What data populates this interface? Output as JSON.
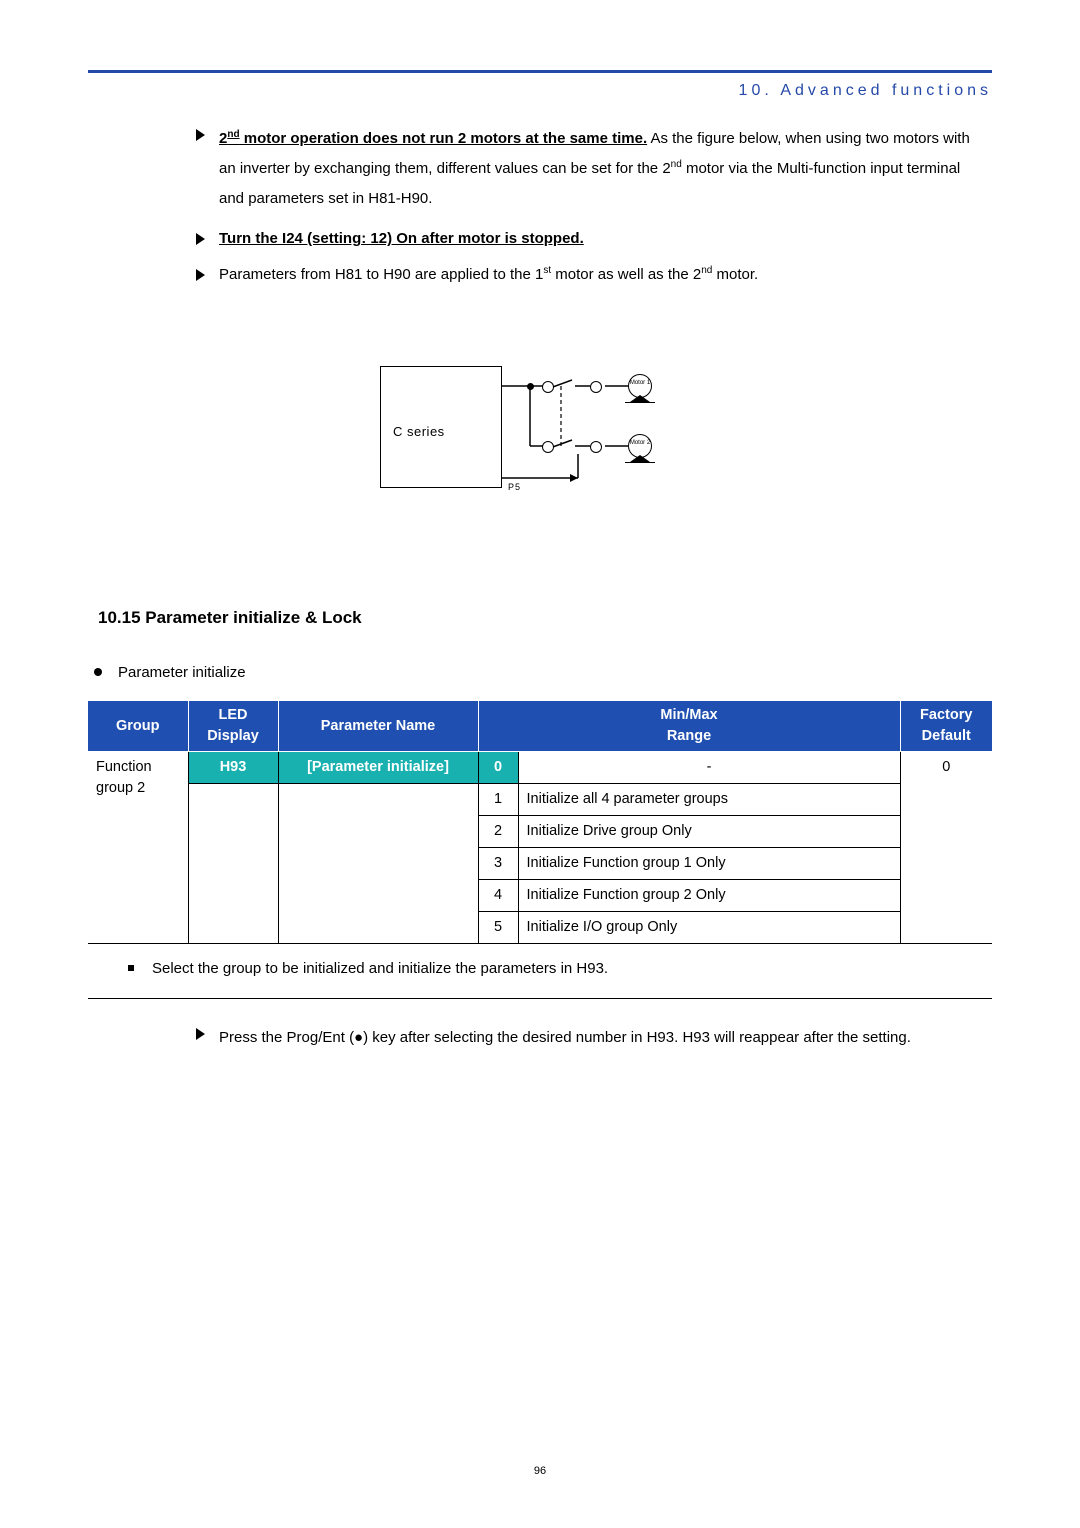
{
  "header": {
    "title": "10. Advanced functions"
  },
  "bullets": {
    "b1_strong": "2",
    "b1_sup": "nd",
    "b1_underlined_rest": " motor operation does not run 2 motors at the same time.",
    "b1_rest": " As the figure below, when using two motors with an inverter by exchanging them, different values can be set for the 2",
    "b1_sup2": "nd",
    "b1_tail": " motor via the Multi-function input terminal and parameters set in H81-H90.",
    "b2": "Turn the I24 (setting: 12) On after motor is stopped.",
    "b3_a": "Parameters from H81 to H90 are applied to the 1",
    "b3_sup1": "st",
    "b3_mid": " motor as well as the 2",
    "b3_sup2": "nd",
    "b3_tail": " motor."
  },
  "diagram": {
    "box_label": "C series",
    "p5": "P5",
    "motor1": "Motor 1",
    "motor2": "Motor 2"
  },
  "section": {
    "heading": "10.15  Parameter initialize & Lock",
    "sub": "Parameter initialize"
  },
  "table": {
    "headers": [
      "Group",
      "LED Display",
      "Parameter Name",
      "Min/Max Range",
      "Factory Default"
    ],
    "group": "Function group 2",
    "led": "H93",
    "pname": "[Parameter initialize]",
    "rows": [
      {
        "n": "0",
        "desc": "-",
        "def": "0"
      },
      {
        "n": "1",
        "desc": "Initialize all 4 parameter groups",
        "def": ""
      },
      {
        "n": "2",
        "desc": "Initialize Drive group Only",
        "def": ""
      },
      {
        "n": "3",
        "desc": "Initialize Function group 1 Only",
        "def": ""
      },
      {
        "n": "4",
        "desc": "Initialize Function group 2 Only",
        "def": ""
      },
      {
        "n": "5",
        "desc": "Initialize I/O group Only",
        "def": ""
      }
    ]
  },
  "after_table": {
    "sq": "Select the group to be initialized and initialize the parameters in H93.",
    "tri": "Press the Prog/Ent (●) key after selecting the desired number in H93. H93 will reappear after the setting."
  },
  "page_number": "96",
  "colors": {
    "header_blue": "#2549a8",
    "table_blue": "#1f4fb0",
    "teal": "#19b0b0"
  }
}
